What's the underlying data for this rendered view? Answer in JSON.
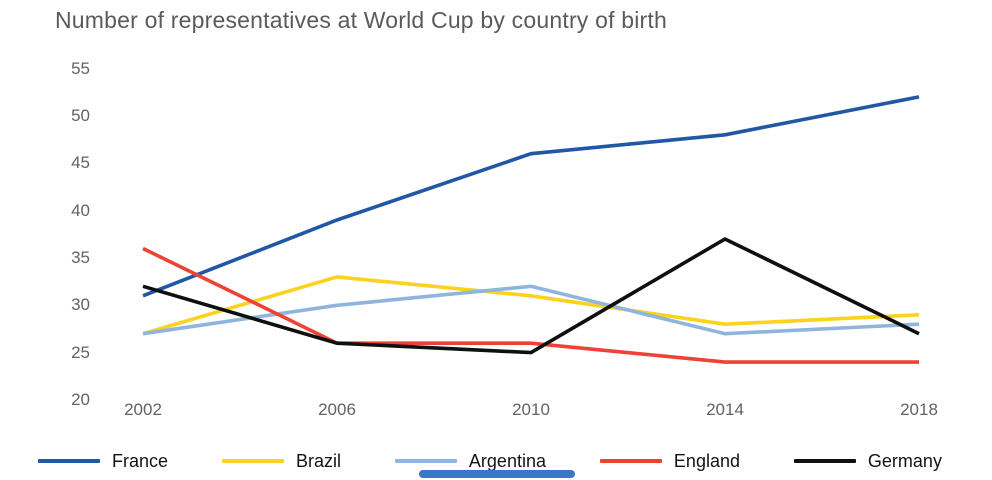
{
  "chart_data": {
    "type": "line",
    "title": "Number of representatives at World Cup by country of birth",
    "categories": [
      "2002",
      "2006",
      "2010",
      "2014",
      "2018"
    ],
    "series": [
      {
        "name": "France",
        "color": "#2157a4",
        "values": [
          31,
          39,
          46,
          48,
          52
        ]
      },
      {
        "name": "Brazil",
        "color": "#fcd21c",
        "values": [
          27,
          33,
          31,
          28,
          29
        ]
      },
      {
        "name": "Argentina",
        "color": "#8fb5dd",
        "values": [
          27,
          30,
          32,
          27,
          28
        ]
      },
      {
        "name": "England",
        "color": "#ee4237",
        "values": [
          36,
          26,
          26,
          24,
          24
        ]
      },
      {
        "name": "Germany",
        "color": "#0f0f0f",
        "values": [
          32,
          26,
          25,
          37,
          27
        ]
      }
    ],
    "xlabel": "",
    "ylabel": "",
    "ylim": [
      20,
      55
    ],
    "yticks": [
      20,
      25,
      30,
      35,
      40,
      45,
      50,
      55
    ],
    "grid": false,
    "legend_position": "bottom"
  },
  "page": {
    "background_color": "#ffffff",
    "indicator_color": "#3b76c9"
  }
}
